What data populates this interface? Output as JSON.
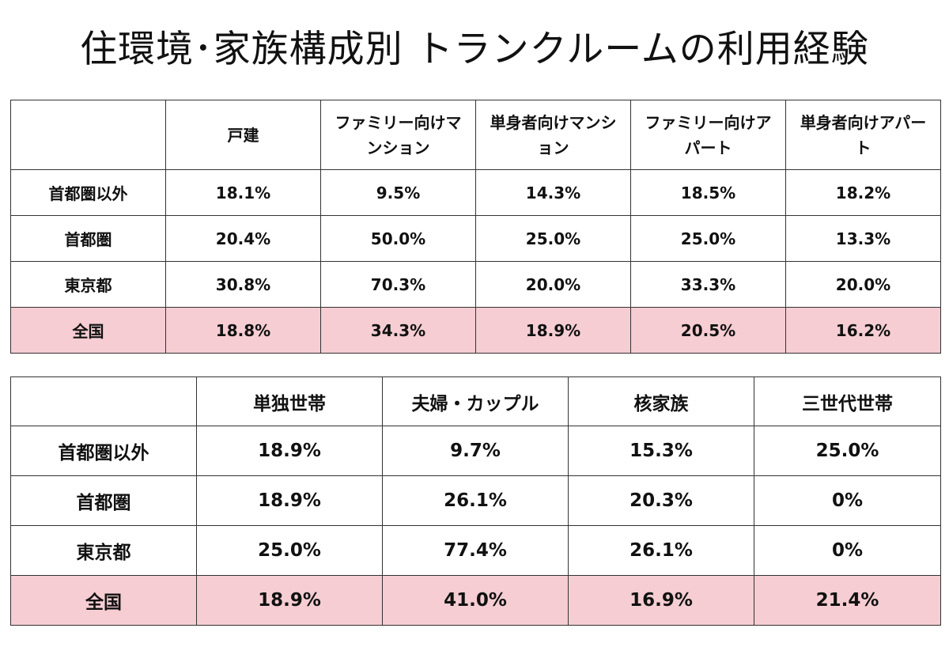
{
  "page": {
    "title": "住環境･家族構成別 トランクルームの利用経験"
  },
  "colors": {
    "highlight_row": "#f5cdd2",
    "border": "#333333"
  },
  "chart_data": [
    {
      "type": "table",
      "columns": [
        "戸建",
        "ファミリー向けマンション",
        "単身者向けマンション",
        "ファミリー向けアパート",
        "単身者向けアパート"
      ],
      "rows": [
        {
          "label": "首都圏以外",
          "values": [
            "18.1%",
            "9.5%",
            "14.3%",
            "18.5%",
            "18.2%"
          ],
          "highlight": false
        },
        {
          "label": "首都圏",
          "values": [
            "20.4%",
            "50.0%",
            "25.0%",
            "25.0%",
            "13.3%"
          ],
          "highlight": false
        },
        {
          "label": "東京都",
          "values": [
            "30.8%",
            "70.3%",
            "20.0%",
            "33.3%",
            "20.0%"
          ],
          "highlight": false
        },
        {
          "label": "全国",
          "values": [
            "18.8%",
            "34.3%",
            "18.9%",
            "20.5%",
            "16.2%"
          ],
          "highlight": true
        }
      ]
    },
    {
      "type": "table",
      "columns": [
        "単独世帯",
        "夫婦・カップル",
        "核家族",
        "三世代世帯"
      ],
      "rows": [
        {
          "label": "首都圏以外",
          "values": [
            "18.9%",
            "9.7%",
            "15.3%",
            "25.0%"
          ],
          "highlight": false
        },
        {
          "label": "首都圏",
          "values": [
            "18.9%",
            "26.1%",
            "20.3%",
            "0%"
          ],
          "highlight": false
        },
        {
          "label": "東京都",
          "values": [
            "25.0%",
            "77.4%",
            "26.1%",
            "0%"
          ],
          "highlight": false
        },
        {
          "label": "全国",
          "values": [
            "18.9%",
            "41.0%",
            "16.9%",
            "21.4%"
          ],
          "highlight": true
        }
      ]
    }
  ]
}
